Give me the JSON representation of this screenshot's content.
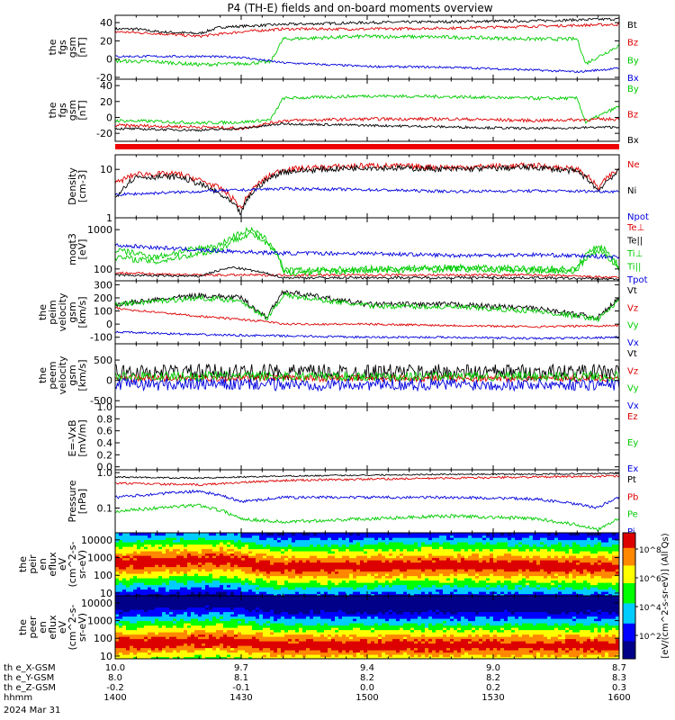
{
  "title": "P4 (TH-E) fields and on-board moments overview",
  "date": "2024 Mar 31",
  "colorbar_label": "[eV/(cm^2-s-sr-eV)] (All Qs)",
  "colorbar_ticks": [
    "10^8",
    "10^6",
    "10^4",
    "10^2"
  ],
  "x_rows": [
    {
      "label": "th e_X-GSM",
      "values": [
        "10.0",
        "9.7",
        "9.4",
        "9.0",
        "8.7"
      ]
    },
    {
      "label": "th e_Y-GSM",
      "values": [
        "8.0",
        "8.1",
        "8.2",
        "8.2",
        "8.3"
      ]
    },
    {
      "label": "th e_Z-GSM",
      "values": [
        "-0.2",
        "-0.1",
        "0.0",
        "0.2",
        "0.3"
      ]
    },
    {
      "label": "hhmm",
      "values": [
        "1400",
        "1430",
        "1500",
        "1530",
        "1600"
      ]
    }
  ],
  "chart_data": [
    {
      "type": "line",
      "ylabel": [
        "the",
        "fgs",
        "gsm",
        "[nT]"
      ],
      "yticks": [
        {
          "v": 40,
          "t": "40"
        },
        {
          "v": 20,
          "t": "20"
        },
        {
          "v": 0,
          "t": "0"
        },
        {
          "v": -20,
          "t": "-20"
        }
      ],
      "ylim": [
        -22,
        48
      ],
      "series": [
        {
          "name": "Bt",
          "color": "#000000",
          "noise": 1.5,
          "x": [
            0,
            5,
            10,
            20,
            25,
            40,
            60,
            80,
            100,
            120
          ],
          "y": [
            33,
            33,
            30,
            28,
            35,
            38,
            40,
            41,
            42,
            44
          ]
        },
        {
          "name": "Bz",
          "color": "#dd0000",
          "noise": 1.5,
          "x": [
            0,
            10,
            20,
            30,
            40,
            60,
            80,
            100,
            120
          ],
          "y": [
            30,
            28,
            25,
            30,
            33,
            33,
            34,
            36,
            38
          ]
        },
        {
          "name": "By",
          "color": "#00cc00",
          "noise": 2,
          "x": [
            0,
            10,
            20,
            30,
            37,
            40,
            60,
            80,
            100,
            110,
            112,
            120
          ],
          "y": [
            -2,
            -3,
            -6,
            -5,
            -3,
            22,
            25,
            24,
            22,
            22,
            -5,
            15
          ]
        },
        {
          "name": "Bx",
          "color": "#0000dd",
          "noise": 1.2,
          "x": [
            0,
            20,
            30,
            40,
            60,
            80,
            100,
            110,
            120
          ],
          "y": [
            3,
            3,
            2,
            -4,
            -8,
            -9,
            -12,
            -14,
            -10
          ]
        }
      ]
    },
    {
      "type": "line",
      "ylabel": [
        "the",
        "fgs",
        "gsm",
        "[nT]"
      ],
      "yticks": [
        {
          "v": 40,
          "t": "40"
        },
        {
          "v": 20,
          "t": "20"
        },
        {
          "v": 0,
          "t": "0"
        },
        {
          "v": -20,
          "t": "-20"
        }
      ],
      "ylim": [
        -30,
        48
      ],
      "series": [
        {
          "name": "By",
          "color": "#00cc00",
          "noise": 2,
          "x": [
            0,
            10,
            20,
            30,
            37,
            40,
            60,
            80,
            100,
            110,
            112,
            120
          ],
          "y": [
            -4,
            -5,
            -7,
            -6,
            -3,
            24,
            27,
            26,
            24,
            24,
            -6,
            14
          ]
        },
        {
          "name": "Bz",
          "color": "#dd0000",
          "noise": 2,
          "x": [
            0,
            20,
            30,
            40,
            60,
            80,
            100,
            120
          ],
          "y": [
            -10,
            -12,
            -14,
            -4,
            -2,
            -2,
            -4,
            -2
          ]
        },
        {
          "name": "Bx",
          "color": "#000000",
          "noise": 1.5,
          "x": [
            0,
            20,
            30,
            40,
            60,
            80,
            100,
            120
          ],
          "y": [
            -14,
            -16,
            -14,
            -8,
            -10,
            -12,
            -14,
            -12
          ]
        }
      ]
    },
    {
      "type": "line",
      "ylabel": [
        "Density",
        "[cm-3]"
      ],
      "yscale": "log",
      "yticks": [
        {
          "v": 10,
          "t": "10"
        },
        {
          "v": 1,
          "t": "1"
        }
      ],
      "ylim": [
        1,
        20
      ],
      "series": [
        {
          "name": "Ne",
          "color": "#dd0000",
          "noise": 0.06,
          "x": [
            0,
            5,
            15,
            25,
            30,
            40,
            60,
            80,
            100,
            110,
            115,
            120
          ],
          "y": [
            5,
            8,
            8,
            4,
            1.5,
            10,
            12,
            11,
            12,
            10,
            4,
            10
          ]
        },
        {
          "name": "Ni",
          "color": "#000000",
          "noise": 0.06,
          "x": [
            0,
            5,
            15,
            25,
            30,
            40,
            60,
            80,
            100,
            110,
            115,
            120
          ],
          "y": [
            2.5,
            7,
            7,
            3,
            1.2,
            9,
            11,
            10,
            11,
            9,
            3.5,
            9
          ]
        },
        {
          "name": "Npot",
          "color": "#0000dd",
          "noise": 0.03,
          "x": [
            0,
            20,
            40,
            60,
            80,
            100,
            120
          ],
          "y": [
            3,
            3.5,
            4,
            3.8,
            3.5,
            3.6,
            3.5
          ]
        }
      ]
    },
    {
      "type": "line",
      "ylabel": [
        "moqt3",
        "[eV]"
      ],
      "yscale": "log",
      "yticks": [
        {
          "v": 1000,
          "t": "1000"
        },
        {
          "v": 100,
          "t": "100"
        }
      ],
      "ylim": [
        50,
        2000
      ],
      "series": [
        {
          "name": "Te⊥",
          "color": "#dd0000",
          "noise": 0.03,
          "x": [
            0,
            20,
            40,
            60,
            80,
            100,
            120
          ],
          "y": [
            80,
            70,
            70,
            70,
            70,
            70,
            60
          ]
        },
        {
          "name": "Te||",
          "color": "#000000",
          "noise": 0.03,
          "x": [
            0,
            20,
            28,
            40,
            60,
            80,
            100,
            120
          ],
          "y": [
            70,
            65,
            110,
            60,
            60,
            60,
            60,
            55
          ]
        },
        {
          "name": "Ti⊥",
          "color": "#00cc00",
          "noise": 0.08,
          "x": [
            0,
            10,
            25,
            32,
            40,
            60,
            80,
            100,
            110,
            115,
            120
          ],
          "y": [
            300,
            200,
            400,
            1000,
            90,
            100,
            110,
            100,
            100,
            400,
            100
          ]
        },
        {
          "name": "Ti||",
          "color": "#00cc00",
          "noise": 0.08,
          "x": [
            0,
            10,
            25,
            32,
            40,
            60,
            80,
            100,
            110,
            115,
            120
          ],
          "y": [
            200,
            150,
            300,
            800,
            80,
            90,
            100,
            90,
            90,
            300,
            90
          ]
        },
        {
          "name": "Tpot",
          "color": "#0000dd",
          "noise": 0.05,
          "x": [
            0,
            20,
            40,
            60,
            80,
            100,
            120
          ],
          "y": [
            400,
            300,
            250,
            250,
            220,
            230,
            200
          ]
        }
      ]
    },
    {
      "type": "line",
      "ylabel": [
        "the",
        "peim",
        "velocity",
        "gsm",
        "[km/s]"
      ],
      "yticks": [
        {
          "v": 300,
          "t": "300"
        },
        {
          "v": 200,
          "t": "200"
        },
        {
          "v": 100,
          "t": "100"
        },
        {
          "v": 0,
          "t": "0"
        },
        {
          "v": -100,
          "t": "-100"
        }
      ],
      "ylim": [
        -150,
        330
      ],
      "series": [
        {
          "name": "Vt",
          "color": "#000000",
          "noise": 20,
          "x": [
            0,
            20,
            30,
            36,
            40,
            60,
            80,
            100,
            115,
            120
          ],
          "y": [
            150,
            220,
            200,
            50,
            250,
            150,
            150,
            120,
            50,
            200
          ]
        },
        {
          "name": "Vz",
          "color": "#dd0000",
          "noise": 8,
          "x": [
            0,
            20,
            36,
            40,
            60,
            80,
            100,
            120
          ],
          "y": [
            120,
            60,
            20,
            0,
            0,
            -10,
            -20,
            -10
          ]
        },
        {
          "name": "Vy",
          "color": "#00cc00",
          "noise": 20,
          "x": [
            0,
            20,
            30,
            36,
            40,
            60,
            80,
            100,
            115,
            120
          ],
          "y": [
            150,
            200,
            180,
            40,
            220,
            140,
            130,
            100,
            40,
            180
          ]
        },
        {
          "name": "Vx",
          "color": "#0000dd",
          "noise": 8,
          "x": [
            0,
            20,
            40,
            60,
            80,
            100,
            120
          ],
          "y": [
            -60,
            -80,
            -90,
            -100,
            -100,
            -110,
            -100
          ]
        }
      ]
    },
    {
      "type": "line",
      "ylabel": [
        "the",
        "peem",
        "velocity",
        "gsm",
        "[km/s]"
      ],
      "yticks": [
        {
          "v": 500,
          "t": "500"
        },
        {
          "v": 0,
          "t": "0"
        },
        {
          "v": -500,
          "t": "-500"
        }
      ],
      "ylim": [
        -650,
        900
      ],
      "series": [
        {
          "name": "Vt",
          "color": "#000000",
          "noise": 200,
          "x": [
            0,
            120
          ],
          "y": [
            200,
            200
          ]
        },
        {
          "name": "Vz",
          "color": "#dd0000",
          "noise": 80,
          "x": [
            0,
            120
          ],
          "y": [
            50,
            50
          ]
        },
        {
          "name": "Vy",
          "color": "#00cc00",
          "noise": 120,
          "x": [
            0,
            120
          ],
          "y": [
            100,
            100
          ]
        },
        {
          "name": "Vx",
          "color": "#0000dd",
          "noise": 150,
          "x": [
            0,
            120
          ],
          "y": [
            -100,
            -100
          ]
        }
      ]
    },
    {
      "type": "line",
      "ylabel": [
        "E=-VxB",
        "[mV/m]"
      ],
      "yticks": [
        {
          "v": 1.0,
          "t": "1.0"
        },
        {
          "v": 0.8,
          "t": "0.8"
        },
        {
          "v": 0.6,
          "t": "0.6"
        },
        {
          "v": 0.4,
          "t": "0.4"
        },
        {
          "v": 0.2,
          "t": "0.2"
        },
        {
          "v": 0.0,
          "t": "0.0"
        }
      ],
      "ylim": [
        -0.05,
        1.0
      ],
      "series": [
        {
          "name": "Ez",
          "color": "#dd0000",
          "x": [],
          "y": []
        },
        {
          "name": "Ey",
          "color": "#00cc00",
          "x": [],
          "y": []
        },
        {
          "name": "Ex",
          "color": "#0000dd",
          "x": [],
          "y": []
        }
      ]
    },
    {
      "type": "line",
      "ylabel": [
        "Pressure",
        "[nPa]"
      ],
      "yscale": "log",
      "yticks": [
        {
          "v": 1.0,
          "t": "1.0"
        },
        {
          "v": 0.1,
          "t": "0.1"
        }
      ],
      "ylim": [
        0.02,
        1.2
      ],
      "series": [
        {
          "name": "Pt",
          "color": "#000000",
          "noise": 0.02,
          "x": [
            0,
            20,
            40,
            60,
            80,
            100,
            120
          ],
          "y": [
            0.75,
            0.7,
            0.8,
            0.85,
            0.9,
            0.9,
            0.95
          ]
        },
        {
          "name": "Pb",
          "color": "#dd0000",
          "noise": 0.03,
          "x": [
            0,
            20,
            40,
            60,
            80,
            100,
            120
          ],
          "y": [
            0.5,
            0.45,
            0.6,
            0.65,
            0.7,
            0.75,
            0.8
          ]
        },
        {
          "name": "Pe",
          "color": "#00cc00",
          "noise": 0.05,
          "x": [
            0,
            10,
            20,
            30,
            40,
            60,
            80,
            100,
            115,
            120
          ],
          "y": [
            0.08,
            0.1,
            0.12,
            0.05,
            0.04,
            0.05,
            0.06,
            0.05,
            0.025,
            0.05
          ]
        },
        {
          "name": "Pi",
          "color": "#0000dd",
          "noise": 0.04,
          "x": [
            0,
            10,
            20,
            30,
            40,
            60,
            80,
            100,
            115,
            120
          ],
          "y": [
            0.2,
            0.25,
            0.3,
            0.15,
            0.2,
            0.2,
            0.2,
            0.18,
            0.1,
            0.2
          ]
        }
      ]
    },
    {
      "type": "heatmap",
      "ylabel": [
        "the",
        "peir",
        "en",
        "eflux",
        "eV",
        "(cm^2-s-",
        "sr-eV)"
      ],
      "yscale": "log",
      "yticks": [
        {
          "v": 10000,
          "t": "10000"
        },
        {
          "v": 1000,
          "t": "1000"
        },
        {
          "v": 100,
          "t": "100"
        },
        {
          "v": 10,
          "t": "10"
        }
      ],
      "ylim": [
        7,
        25000
      ],
      "peak_energy_eV": [
        {
          "x": 0,
          "e": 500
        },
        {
          "x": 25,
          "e": 800
        },
        {
          "x": 38,
          "e": 300
        },
        {
          "x": 80,
          "e": 400
        },
        {
          "x": 120,
          "e": 300
        }
      ],
      "colorscale": [
        [
          0,
          "#f0f0f0"
        ],
        [
          0.15,
          "#000088"
        ],
        [
          0.3,
          "#0000ff"
        ],
        [
          0.45,
          "#00ccff"
        ],
        [
          0.6,
          "#00ff00"
        ],
        [
          0.75,
          "#ffff00"
        ],
        [
          0.88,
          "#ff8800"
        ],
        [
          1,
          "#dd0000"
        ]
      ]
    },
    {
      "type": "heatmap",
      "ylabel": [
        "the",
        "peer",
        "en",
        "eflux",
        "eV",
        "(cm^2-s-",
        "sr-eV)"
      ],
      "yscale": "log",
      "yticks": [
        {
          "v": 10000,
          "t": "10000"
        },
        {
          "v": 1000,
          "t": "1000"
        },
        {
          "v": 100,
          "t": "100"
        },
        {
          "v": 10,
          "t": "10"
        }
      ],
      "ylim": [
        7,
        25000
      ],
      "peak_energy_eV": [
        {
          "x": 0,
          "e": 50
        },
        {
          "x": 25,
          "e": 80
        },
        {
          "x": 38,
          "e": 40
        },
        {
          "x": 80,
          "e": 40
        },
        {
          "x": 120,
          "e": 40
        }
      ],
      "colorscale": [
        [
          0,
          "#f0f0f0"
        ],
        [
          0.15,
          "#000088"
        ],
        [
          0.3,
          "#0000ff"
        ],
        [
          0.45,
          "#00ccff"
        ],
        [
          0.6,
          "#00ff00"
        ],
        [
          0.75,
          "#ffff00"
        ],
        [
          0.88,
          "#ff8800"
        ],
        [
          1,
          "#dd0000"
        ]
      ]
    }
  ]
}
